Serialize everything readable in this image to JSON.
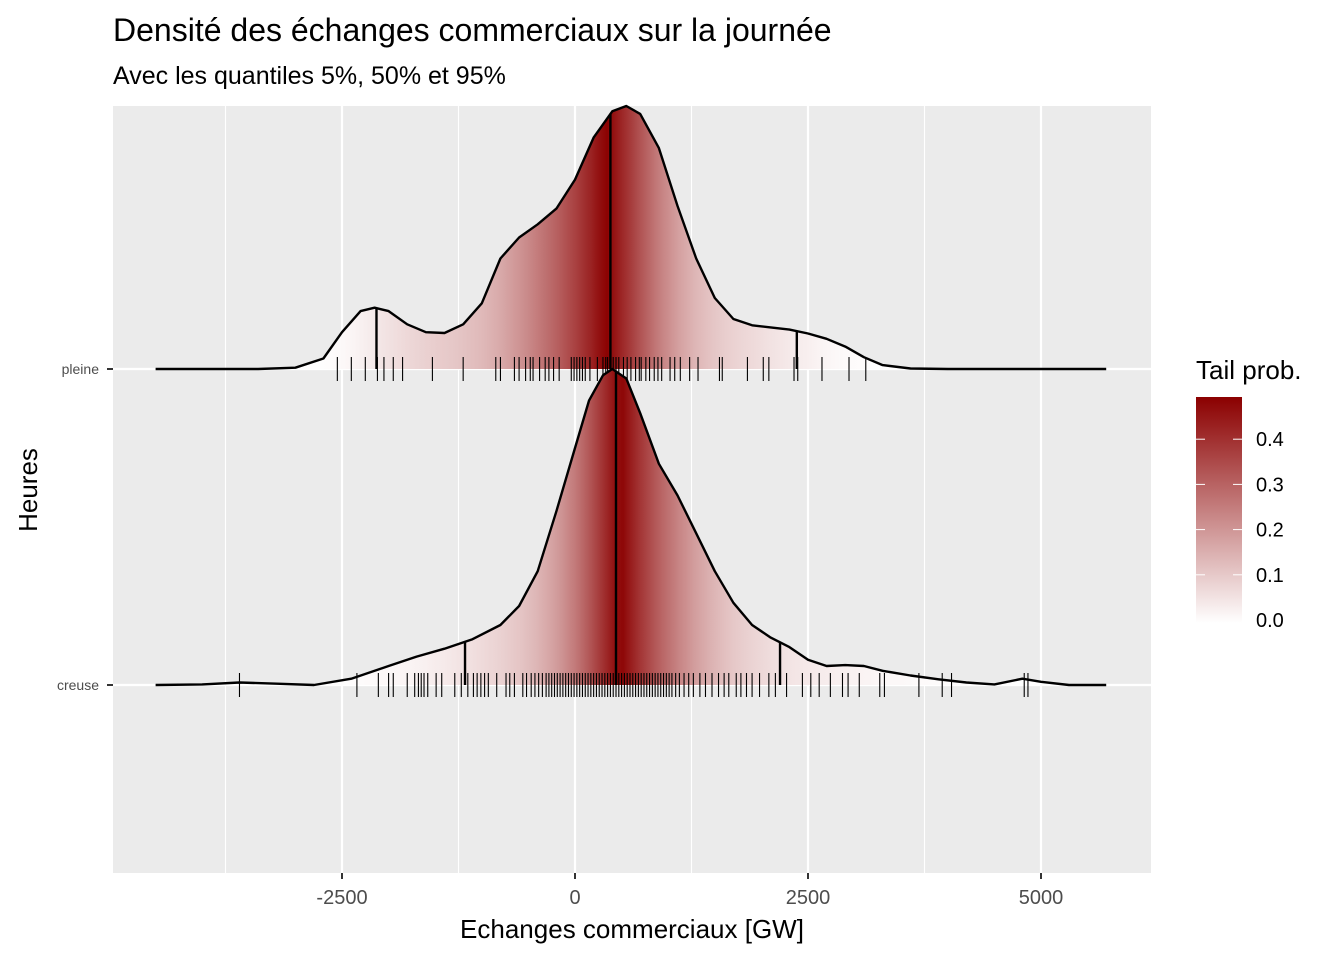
{
  "chart_data": {
    "type": "density_ridges",
    "title": "Densité des échanges commerciaux sur la journée",
    "subtitle": "Avec les quantiles 5%, 50% et 95%",
    "xlabel": "Echanges commerciaux [GW]",
    "ylabel": "Heures",
    "xlim": [
      -4900,
      6250
    ],
    "x_ticks": [
      -2500,
      0,
      2500,
      5000
    ],
    "x_tick_labels": [
      "-2500",
      "0",
      "2500",
      "5000"
    ],
    "categories": [
      "pleine",
      "creuse"
    ],
    "grid": true,
    "legend": {
      "title": "Tail prob.",
      "position": "right",
      "ticks": [
        0.0,
        0.1,
        0.2,
        0.3,
        0.4
      ],
      "tick_labels": [
        "0.0",
        "0.1",
        "0.2",
        "0.3",
        "0.4"
      ],
      "range": [
        0,
        0.5
      ],
      "color_low": "#ffffff",
      "color_high": "#8b0000"
    },
    "series": [
      {
        "name": "pleine",
        "quantiles": {
          "q05": -2130,
          "q50": 380,
          "q95": 2380
        },
        "density": [
          [
            -4500,
            0
          ],
          [
            -3400,
            0
          ],
          [
            -3000,
            0.005
          ],
          [
            -2700,
            0.04
          ],
          [
            -2500,
            0.14
          ],
          [
            -2300,
            0.22
          ],
          [
            -2150,
            0.233
          ],
          [
            -2000,
            0.22
          ],
          [
            -1800,
            0.17
          ],
          [
            -1600,
            0.14
          ],
          [
            -1400,
            0.137
          ],
          [
            -1200,
            0.17
          ],
          [
            -1000,
            0.25
          ],
          [
            -800,
            0.42
          ],
          [
            -600,
            0.5
          ],
          [
            -400,
            0.55
          ],
          [
            -200,
            0.61
          ],
          [
            0,
            0.72
          ],
          [
            200,
            0.88
          ],
          [
            400,
            0.98
          ],
          [
            550,
            1.0
          ],
          [
            700,
            0.97
          ],
          [
            900,
            0.84
          ],
          [
            1100,
            0.62
          ],
          [
            1300,
            0.42
          ],
          [
            1500,
            0.27
          ],
          [
            1700,
            0.19
          ],
          [
            1900,
            0.166
          ],
          [
            2100,
            0.158
          ],
          [
            2300,
            0.15
          ],
          [
            2500,
            0.135
          ],
          [
            2700,
            0.115
          ],
          [
            2900,
            0.085
          ],
          [
            3100,
            0.045
          ],
          [
            3300,
            0.015
          ],
          [
            3600,
            0.002
          ],
          [
            4000,
            0
          ],
          [
            5700,
            0
          ]
        ],
        "rugs": [
          -2550,
          -2400,
          -2250,
          -2120,
          -2050,
          -1950,
          -1850,
          -1530,
          -1200,
          -850,
          -800,
          -650,
          -600,
          -530,
          -480,
          -450,
          -380,
          -320,
          -280,
          -230,
          -170,
          -40,
          -10,
          20,
          50,
          80,
          110,
          160,
          240,
          300,
          330,
          350,
          380,
          410,
          440,
          470,
          520,
          560,
          600,
          650,
          690,
          710,
          760,
          800,
          850,
          890,
          930,
          1020,
          1070,
          1130,
          1230,
          1320,
          1550,
          1580,
          1850,
          2020,
          2080,
          2350,
          2390,
          2650,
          2940,
          3120
        ]
      },
      {
        "name": "creuse",
        "quantiles": {
          "q05": -1180,
          "q50": 440,
          "q95": 2200
        },
        "density": [
          [
            -4500,
            0
          ],
          [
            -4000,
            0.002
          ],
          [
            -3600,
            0.008
          ],
          [
            -3200,
            0.004
          ],
          [
            -2800,
            0.0
          ],
          [
            -2400,
            0.02
          ],
          [
            -2000,
            0.06
          ],
          [
            -1700,
            0.09
          ],
          [
            -1400,
            0.115
          ],
          [
            -1100,
            0.145
          ],
          [
            -800,
            0.19
          ],
          [
            -600,
            0.25
          ],
          [
            -400,
            0.36
          ],
          [
            -200,
            0.55
          ],
          [
            0,
            0.75
          ],
          [
            150,
            0.9
          ],
          [
            300,
            0.98
          ],
          [
            400,
            1.0
          ],
          [
            550,
            0.97
          ],
          [
            700,
            0.86
          ],
          [
            900,
            0.7
          ],
          [
            1100,
            0.6
          ],
          [
            1300,
            0.48
          ],
          [
            1500,
            0.36
          ],
          [
            1700,
            0.26
          ],
          [
            1900,
            0.19
          ],
          [
            2100,
            0.15
          ],
          [
            2300,
            0.12
          ],
          [
            2500,
            0.08
          ],
          [
            2700,
            0.06
          ],
          [
            2900,
            0.063
          ],
          [
            3100,
            0.06
          ],
          [
            3300,
            0.045
          ],
          [
            3600,
            0.03
          ],
          [
            3900,
            0.018
          ],
          [
            4200,
            0.008
          ],
          [
            4500,
            0.002
          ],
          [
            4800,
            0.02
          ],
          [
            5000,
            0.01
          ],
          [
            5300,
            0
          ],
          [
            5700,
            0
          ]
        ],
        "rugs": [
          -3600,
          -2340,
          -2110,
          -2000,
          -1950,
          -1800,
          -1720,
          -1680,
          -1650,
          -1620,
          -1580,
          -1490,
          -1430,
          -1290,
          -1220,
          -1150,
          -1090,
          -1050,
          -1010,
          -970,
          -930,
          -840,
          -740,
          -700,
          -650,
          -560,
          -520,
          -470,
          -430,
          -390,
          -350,
          -310,
          -280,
          -250,
          -220,
          -190,
          -160,
          -130,
          -100,
          -70,
          -40,
          -10,
          20,
          50,
          80,
          110,
          140,
          170,
          200,
          230,
          260,
          290,
          320,
          350,
          380,
          410,
          440,
          470,
          500,
          530,
          560,
          590,
          620,
          650,
          680,
          710,
          740,
          770,
          800,
          830,
          860,
          890,
          920,
          950,
          980,
          1010,
          1040,
          1080,
          1120,
          1170,
          1220,
          1270,
          1340,
          1400,
          1470,
          1540,
          1600,
          1650,
          1730,
          1780,
          1840,
          1900,
          1980,
          2080,
          2150,
          2270,
          2440,
          2530,
          2620,
          2740,
          2870,
          2930,
          3050,
          3270,
          3320,
          3690,
          3940,
          4040,
          4820,
          4860
        ]
      }
    ]
  }
}
